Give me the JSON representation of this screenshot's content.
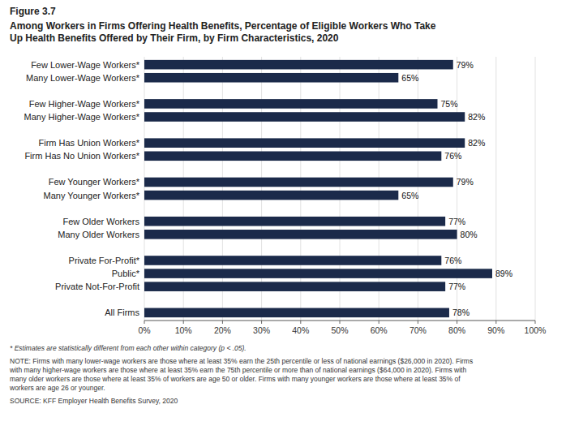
{
  "chart_data": {
    "type": "bar",
    "orientation": "horizontal",
    "title": "Figure 3.7",
    "subtitle": "Among Workers in Firms Offering Health Benefits, Percentage of Eligible Workers Who Take\nUp Health Benefits Offered by Their Firm, by Firm Characteristics, 2020",
    "categories": [
      "All Firms",
      null,
      "Private Not-For-Profit",
      "Public*",
      "Private For-Profit*",
      null,
      "Many Older Workers",
      "Few Older Workers",
      null,
      "Many Younger Workers*",
      "Few Younger Workers*",
      null,
      "Firm Has No Union Workers*",
      "Firm Has Union Workers*",
      null,
      "Many Higher-Wage Workers*",
      "Few Higher-Wage Workers*",
      null,
      "Many Lower-Wage Workers*",
      "Few Lower-Wage Workers*"
    ],
    "values": [
      78,
      null,
      77,
      89,
      76,
      null,
      80,
      77,
      null,
      65,
      79,
      null,
      76,
      82,
      null,
      82,
      75,
      null,
      65,
      79
    ],
    "value_labels": [
      "78%",
      null,
      "77%",
      "89%",
      "76%",
      null,
      "80%",
      "77%",
      null,
      "65%",
      "79%",
      null,
      "76%",
      "82%",
      null,
      "82%",
      "75%",
      null,
      "65%",
      "79%"
    ],
    "data_labels": true,
    "color": "#1B2A4A",
    "xlim": [
      0,
      100
    ],
    "xticks": [
      {
        "value": 0,
        "label": "0%"
      },
      {
        "value": 10,
        "label": "10%"
      },
      {
        "value": 20,
        "label": "20%"
      },
      {
        "value": 30,
        "label": "30%"
      },
      {
        "value": 40,
        "label": "40%"
      },
      {
        "value": 50,
        "label": "50%"
      },
      {
        "value": 60,
        "label": "60%"
      },
      {
        "value": 70,
        "label": "70%"
      },
      {
        "value": 80,
        "label": "80%"
      },
      {
        "value": 90,
        "label": "90%"
      },
      {
        "value": 100,
        "label": "100%"
      }
    ],
    "grid": true,
    "annotations": [
      "* Estimates are statistically different from each other within category (p < .05).",
      "NOTE: Firms with many lower-wage workers are those where at least 35% earn the 25th percentile or less of national earnings ($26,000 in 2020). Firms\nwith many higher-wage workers are those where at least 35% earn the 75th percentile or more than of national earnings ($64,000 in 2020). Firms with\nmany older workers are those where at least 35% of workers are age 50 or older. Firms with many younger workers are those where at least 35% of\nworkers are age 26 or younger.",
      "SOURCE: KFF Employer Health Benefits Survey, 2020"
    ]
  }
}
